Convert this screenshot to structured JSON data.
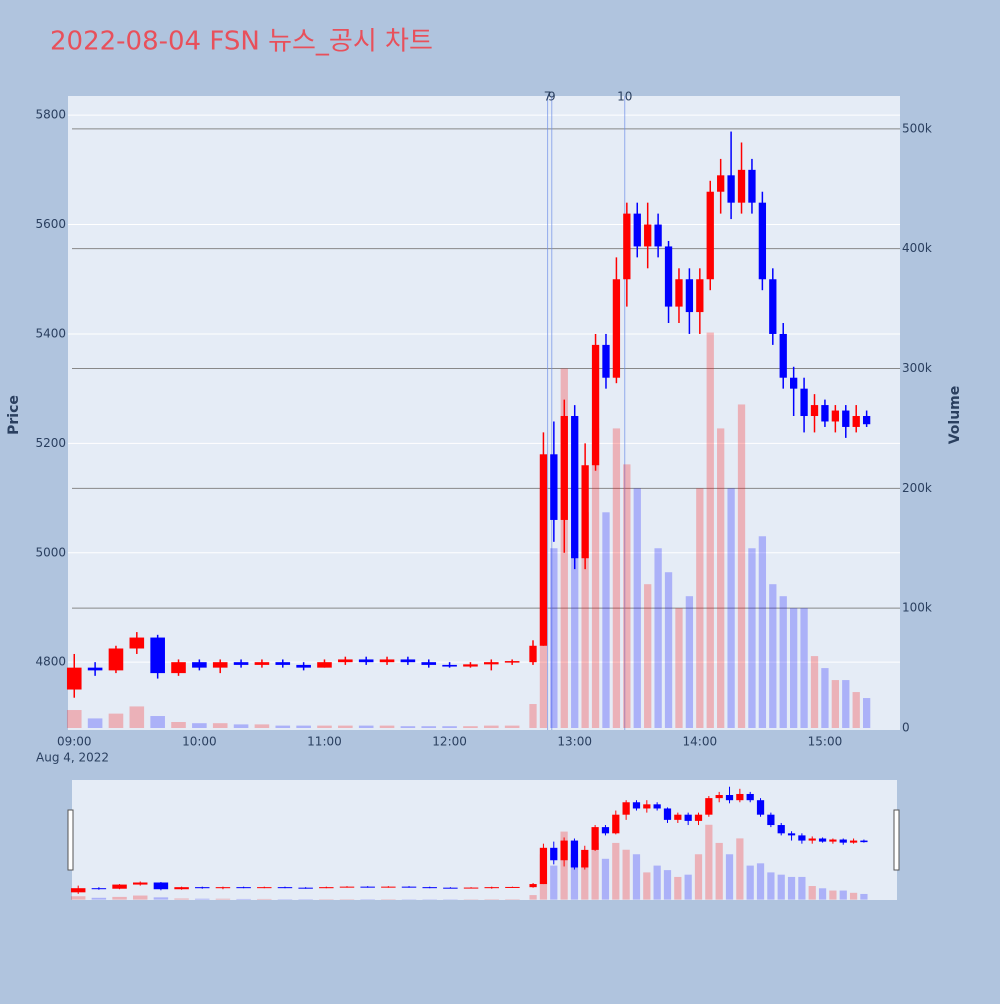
{
  "chart_data": {
    "type": "candlestick",
    "title": "2022-08-04 FSN 뉴스_공시 차트",
    "ylabel": "Price",
    "y2label": "Volume",
    "increasing_color": "#ff0000",
    "decreasing_color": "#0000ff",
    "xlim": [
      "08:57",
      "15:36"
    ],
    "xticks": [
      "09:00",
      "10:00",
      "11:00",
      "12:00",
      "13:00",
      "14:00",
      "15:00"
    ],
    "xtick_date": "Aug 4, 2022",
    "ylim": [
      4676,
      5835
    ],
    "yticks": [
      4800,
      5000,
      5200,
      5400,
      5600,
      5800
    ],
    "y2lim": [
      -1670,
      527400
    ],
    "y2ticks": [
      0,
      {
        "value": 100000,
        "label": "100k"
      },
      {
        "value": 200000,
        "label": "200k"
      },
      {
        "value": 300000,
        "label": "300k"
      },
      {
        "value": 400000,
        "label": "400k"
      },
      {
        "value": 500000,
        "label": "500k"
      }
    ],
    "annotations": [
      {
        "x": "12:47",
        "text": "7"
      },
      {
        "x": "12:49",
        "text": "9"
      },
      {
        "x": "13:24",
        "text": "10"
      }
    ],
    "x": [
      "09:00",
      "09:10",
      "09:20",
      "09:30",
      "09:40",
      "09:50",
      "10:00",
      "10:10",
      "10:20",
      "10:30",
      "10:40",
      "10:50",
      "11:00",
      "11:10",
      "11:20",
      "11:30",
      "11:40",
      "11:50",
      "12:00",
      "12:10",
      "12:20",
      "12:30",
      "12:40",
      "12:45",
      "12:50",
      "12:55",
      "13:00",
      "13:05",
      "13:10",
      "13:15",
      "13:20",
      "13:25",
      "13:30",
      "13:35",
      "13:40",
      "13:45",
      "13:50",
      "13:55",
      "14:00",
      "14:05",
      "14:10",
      "14:15",
      "14:20",
      "14:25",
      "14:30",
      "14:35",
      "14:40",
      "14:45",
      "14:50",
      "14:55",
      "15:00",
      "15:05",
      "15:10",
      "15:15",
      "15:20"
    ],
    "open": [
      4750,
      4790,
      4785,
      4825,
      4845,
      4780,
      4800,
      4790,
      4800,
      4795,
      4800,
      4795,
      4790,
      4800,
      4805,
      4800,
      4805,
      4800,
      4795,
      4792,
      4796,
      4800,
      4800,
      4830,
      5180,
      5060,
      5250,
      4990,
      5160,
      5380,
      5320,
      5500,
      5620,
      5560,
      5600,
      5560,
      5450,
      5500,
      5440,
      5500,
      5660,
      5690,
      5640,
      5700,
      5640,
      5500,
      5400,
      5320,
      5300,
      5250,
      5270,
      5240,
      5260,
      5230,
      5250
    ],
    "high": [
      4815,
      4800,
      4830,
      4855,
      4850,
      4805,
      4805,
      4805,
      4805,
      4805,
      4805,
      4800,
      4805,
      4810,
      4810,
      4810,
      4810,
      4805,
      4800,
      4800,
      4805,
      4805,
      4840,
      5220,
      5240,
      5280,
      5270,
      5200,
      5400,
      5400,
      5540,
      5640,
      5640,
      5640,
      5620,
      5570,
      5520,
      5520,
      5520,
      5680,
      5720,
      5770,
      5750,
      5720,
      5660,
      5520,
      5420,
      5340,
      5320,
      5290,
      5280,
      5270,
      5270,
      5270,
      5260
    ],
    "low": [
      4735,
      4775,
      4780,
      4815,
      4770,
      4775,
      4785,
      4780,
      4790,
      4790,
      4790,
      4785,
      4790,
      4795,
      4795,
      4795,
      4795,
      4790,
      4790,
      4790,
      4785,
      4795,
      4795,
      4830,
      5020,
      5000,
      4970,
      4970,
      5150,
      5300,
      5310,
      5450,
      5540,
      5520,
      5540,
      5420,
      5420,
      5400,
      5400,
      5480,
      5620,
      5610,
      5620,
      5620,
      5480,
      5380,
      5300,
      5250,
      5220,
      5220,
      5230,
      5220,
      5210,
      5220,
      5230
    ],
    "close": [
      4790,
      4785,
      4825,
      4845,
      4780,
      4800,
      4790,
      4800,
      4795,
      4800,
      4795,
      4790,
      4800,
      4805,
      4800,
      4805,
      4800,
      4795,
      4792,
      4796,
      4800,
      4802,
      4830,
      5180,
      5060,
      5250,
      4990,
      5160,
      5380,
      5320,
      5500,
      5620,
      5560,
      5600,
      5560,
      5450,
      5500,
      5440,
      5500,
      5660,
      5690,
      5640,
      5700,
      5640,
      5500,
      5400,
      5320,
      5300,
      5250,
      5270,
      5240,
      5260,
      5230,
      5250,
      5235
    ],
    "volume": [
      15000,
      8000,
      12000,
      18000,
      10000,
      5000,
      4000,
      4000,
      3000,
      3000,
      2000,
      2000,
      2000,
      2000,
      2000,
      2000,
      1500,
      1500,
      1500,
      1500,
      2000,
      2000,
      20000,
      200000,
      150000,
      300000,
      200000,
      180000,
      250000,
      180000,
      250000,
      220000,
      200000,
      120000,
      150000,
      130000,
      100000,
      110000,
      200000,
      330000,
      250000,
      200000,
      270000,
      150000,
      160000,
      120000,
      110000,
      100000,
      100000,
      60000,
      50000,
      40000,
      40000,
      30000,
      25000
    ]
  }
}
